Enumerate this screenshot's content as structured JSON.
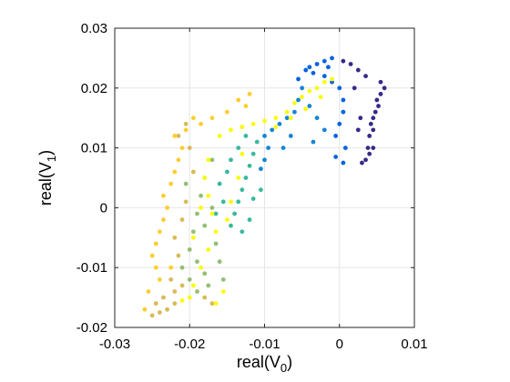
{
  "chart_data": {
    "type": "scatter",
    "title": "",
    "xlabel": {
      "base": "real(V",
      "sub": "0",
      "close": ")"
    },
    "ylabel": {
      "base": "real(V",
      "sub": "1",
      "close": ")"
    },
    "xlim": [
      -0.03,
      0.01
    ],
    "ylim": [
      -0.02,
      0.03
    ],
    "xticks": [
      -0.03,
      -0.02,
      -0.01,
      0,
      0.01
    ],
    "xtick_labels": [
      "-0.03",
      "-0.02",
      "-0.01",
      "0",
      "0.01"
    ],
    "yticks": [
      -0.02,
      -0.01,
      0,
      0.01,
      0.02,
      0.03
    ],
    "ytick_labels": [
      "-0.02",
      "-0.01",
      "0",
      "0.01",
      "0.02",
      "0.03"
    ],
    "grid": true,
    "colormap": [
      "#352a87",
      "#0363e1",
      "#1485d4",
      "#06a7c6",
      "#38b99e",
      "#92bf73",
      "#d9ba56",
      "#fcce2e",
      "#f9fb0e"
    ],
    "series": [
      {
        "color_value": 0.0,
        "points": [
          [
            0.006,
            0.02
          ],
          [
            0.0055,
            0.019
          ],
          [
            0.005,
            0.018
          ],
          [
            0.0052,
            0.017
          ],
          [
            0.0048,
            0.016
          ],
          [
            0.0045,
            0.015
          ],
          [
            0.0042,
            0.014
          ],
          [
            0.0045,
            0.013
          ],
          [
            0.004,
            0.012
          ],
          [
            0.0045,
            0.01
          ],
          [
            0.004,
            0.009
          ],
          [
            0.0035,
            0.008
          ],
          [
            0.003,
            0.0075
          ],
          [
            0.0038,
            0.01
          ],
          [
            0.0055,
            0.021
          ],
          [
            0.0035,
            0.022
          ],
          [
            0.0025,
            0.023
          ],
          [
            0.0015,
            0.024
          ],
          [
            0.0005,
            0.0245
          ],
          [
            0.002,
            0.02
          ],
          [
            0.0028,
            0.015
          ],
          [
            0.0025,
            0.013
          ]
        ]
      },
      {
        "color_value": 0.15,
        "points": [
          [
            -0.001,
            0.025
          ],
          [
            -0.002,
            0.0245
          ],
          [
            -0.003,
            0.024
          ],
          [
            -0.004,
            0.0235
          ],
          [
            -0.0045,
            0.023
          ],
          [
            -0.002,
            0.022
          ],
          [
            -0.001,
            0.021
          ],
          [
            0.0,
            0.02
          ],
          [
            0.0005,
            0.018
          ],
          [
            0.0005,
            0.016
          ],
          [
            0.0,
            0.014
          ],
          [
            -0.0005,
            0.012
          ],
          [
            0.0008,
            0.01
          ],
          [
            -0.0005,
            0.0085
          ],
          [
            0.0005,
            0.0075
          ],
          [
            -0.0015,
            0.0235
          ],
          [
            -0.0035,
            0.0225
          ],
          [
            -0.0055,
            0.0215
          ]
        ]
      },
      {
        "color_value": 0.3,
        "points": [
          [
            -0.005,
            0.02
          ],
          [
            -0.0055,
            0.018
          ],
          [
            -0.006,
            0.016
          ],
          [
            -0.007,
            0.015
          ],
          [
            -0.008,
            0.014
          ],
          [
            -0.009,
            0.013
          ],
          [
            -0.01,
            0.012
          ],
          [
            -0.0095,
            0.01
          ],
          [
            -0.01,
            0.008
          ],
          [
            -0.0105,
            0.0065
          ],
          [
            -0.004,
            0.017
          ],
          [
            -0.003,
            0.015
          ],
          [
            -0.002,
            0.013
          ],
          [
            -0.0035,
            0.011
          ],
          [
            -0.0065,
            0.012
          ],
          [
            -0.0075,
            0.01
          ]
        ]
      },
      {
        "color_value": 0.45,
        "points": [
          [
            -0.011,
            0.011
          ],
          [
            -0.0115,
            0.009
          ],
          [
            -0.012,
            0.007
          ],
          [
            -0.0125,
            0.005
          ],
          [
            -0.013,
            0.003
          ],
          [
            -0.0135,
            0.001
          ],
          [
            -0.014,
            -0.001
          ],
          [
            -0.0145,
            -0.003
          ],
          [
            -0.0125,
            0.012
          ],
          [
            -0.0135,
            0.01
          ],
          [
            -0.015,
            0.006
          ],
          [
            -0.016,
            0.004
          ],
          [
            -0.0155,
            0.001
          ],
          [
            -0.0165,
            -0.001
          ],
          [
            -0.012,
            -0.002
          ],
          [
            -0.013,
            -0.004
          ],
          [
            -0.0145,
            0.008
          ],
          [
            -0.0105,
            0.003
          ],
          [
            -0.0115,
            0.0015
          ]
        ]
      },
      {
        "color_value": 0.6,
        "points": [
          [
            -0.017,
            0.008
          ],
          [
            -0.018,
            0.005
          ],
          [
            -0.0185,
            0.002
          ],
          [
            -0.019,
            -0.001
          ],
          [
            -0.0195,
            -0.004
          ],
          [
            -0.02,
            -0.007
          ],
          [
            -0.019,
            -0.009
          ],
          [
            -0.018,
            -0.011
          ],
          [
            -0.0175,
            -0.013
          ],
          [
            -0.019,
            -0.014
          ],
          [
            -0.02,
            -0.012
          ],
          [
            -0.021,
            -0.01
          ],
          [
            -0.0165,
            -0.006
          ],
          [
            -0.016,
            -0.009
          ],
          [
            -0.0155,
            -0.012
          ],
          [
            -0.018,
            -0.003
          ],
          [
            -0.017,
            0.0
          ],
          [
            -0.0205,
            0.004
          ]
        ]
      },
      {
        "color_value": 0.72,
        "points": [
          [
            -0.022,
            -0.016
          ],
          [
            -0.023,
            -0.017
          ],
          [
            -0.024,
            -0.0175
          ],
          [
            -0.025,
            -0.018
          ],
          [
            -0.0245,
            -0.016
          ],
          [
            -0.0235,
            -0.015
          ],
          [
            -0.022,
            -0.014
          ],
          [
            -0.021,
            -0.013
          ],
          [
            -0.0225,
            -0.012
          ],
          [
            -0.0215,
            -0.008
          ],
          [
            -0.022,
            -0.005
          ],
          [
            -0.021,
            -0.002
          ],
          [
            -0.0205,
            0.001
          ],
          [
            -0.0195,
            0.006
          ],
          [
            -0.02,
            0.01
          ],
          [
            -0.0215,
            0.012
          ],
          [
            -0.0205,
            0.014
          ],
          [
            -0.018,
            -0.015
          ],
          [
            -0.017,
            -0.016
          ]
        ]
      },
      {
        "color_value": 0.85,
        "points": [
          [
            -0.024,
            -0.012
          ],
          [
            -0.0245,
            -0.01
          ],
          [
            -0.025,
            -0.008
          ],
          [
            -0.0245,
            -0.006
          ],
          [
            -0.024,
            -0.004
          ],
          [
            -0.0235,
            -0.002
          ],
          [
            -0.023,
            0.0
          ],
          [
            -0.0235,
            0.002
          ],
          [
            -0.0225,
            0.004
          ],
          [
            -0.022,
            0.006
          ],
          [
            -0.0215,
            0.008
          ],
          [
            -0.021,
            0.01
          ],
          [
            -0.022,
            0.012
          ],
          [
            -0.0205,
            0.013
          ],
          [
            -0.0195,
            0.015
          ],
          [
            -0.0185,
            0.014
          ],
          [
            -0.017,
            0.015
          ],
          [
            -0.015,
            0.016
          ],
          [
            -0.0135,
            0.018
          ],
          [
            -0.012,
            0.019
          ],
          [
            -0.0125,
            0.017
          ],
          [
            -0.0255,
            -0.014
          ],
          [
            -0.026,
            -0.017
          ],
          [
            -0.0225,
            -0.01
          ]
        ]
      },
      {
        "color_value": 1.0,
        "points": [
          [
            -0.016,
            0.012
          ],
          [
            -0.0145,
            0.013
          ],
          [
            -0.013,
            0.0135
          ],
          [
            -0.0115,
            0.014
          ],
          [
            -0.01,
            0.0145
          ],
          [
            -0.0085,
            0.015
          ],
          [
            -0.007,
            0.016
          ],
          [
            -0.006,
            0.0175
          ],
          [
            -0.005,
            0.0185
          ],
          [
            -0.004,
            0.0195
          ],
          [
            -0.003,
            0.02
          ],
          [
            -0.002,
            0.021
          ],
          [
            -0.001,
            0.0215
          ],
          [
            -0.0025,
            0.0185
          ],
          [
            -0.0045,
            0.0165
          ],
          [
            -0.0065,
            0.015
          ],
          [
            -0.0085,
            0.0135
          ],
          [
            -0.0175,
            0.008
          ],
          [
            -0.018,
            0.005
          ],
          [
            -0.0175,
            0.002
          ],
          [
            -0.017,
            -0.001
          ],
          [
            -0.0165,
            -0.004
          ],
          [
            -0.0175,
            -0.007
          ],
          [
            -0.0185,
            -0.01
          ],
          [
            -0.0195,
            -0.013
          ],
          [
            -0.02,
            -0.015
          ],
          [
            -0.0195,
            -0.005
          ],
          [
            -0.0185,
            0.0
          ],
          [
            -0.015,
            -0.002
          ],
          [
            -0.0145,
            0.001
          ],
          [
            -0.0135,
            0.005
          ],
          [
            -0.013,
            0.009
          ],
          [
            -0.021,
            -0.0155
          ],
          [
            -0.0165,
            -0.016
          ],
          [
            -0.0155,
            -0.014
          ]
        ]
      }
    ]
  }
}
